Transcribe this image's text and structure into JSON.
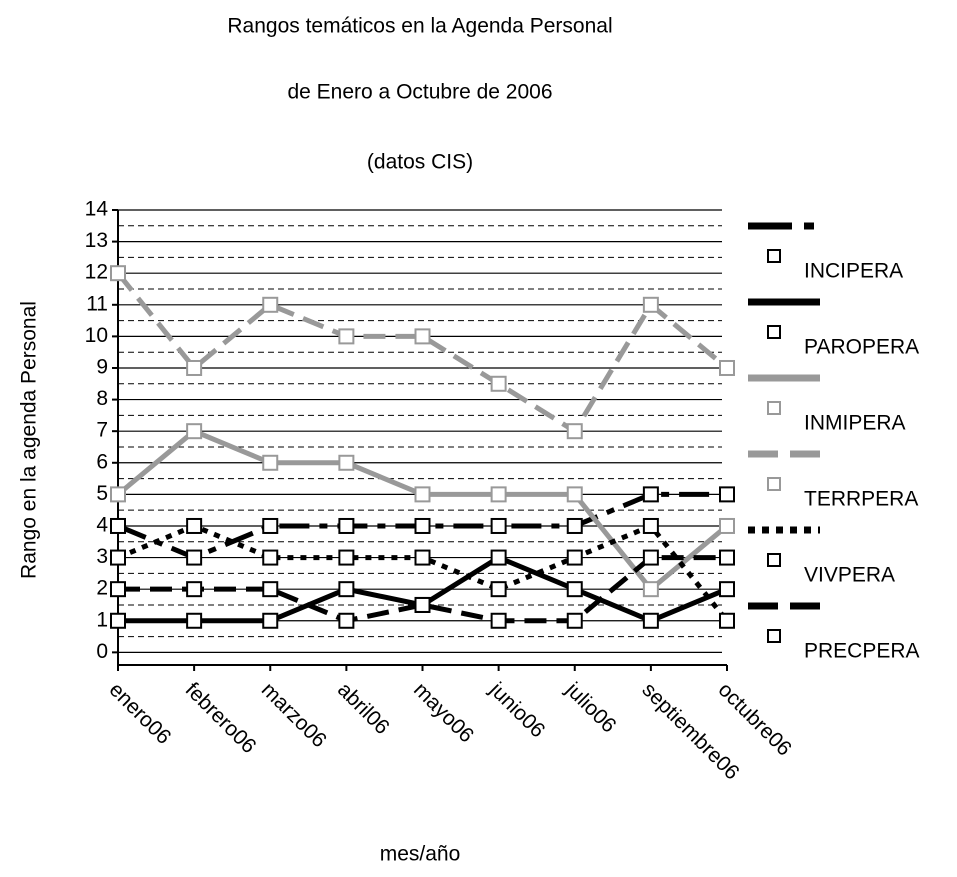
{
  "chart_data": {
    "type": "line",
    "title": "Rangos temáticos en la Agenda Personal",
    "subtitle": "de Enero a Octubre de 2006",
    "note": "(datos CIS)",
    "y_label": "Rango en la agenda Personal",
    "x_label": "mes/año",
    "categories": [
      "enero06",
      "febrero06",
      "marzo06",
      "abril06",
      "mayo06",
      "junio06",
      "julio06",
      "septiembre06",
      "octubre06"
    ],
    "ylim": [
      -0.4,
      14
    ],
    "yticks": [
      0,
      1,
      2,
      3,
      4,
      5,
      6,
      7,
      8,
      9,
      10,
      11,
      12,
      13,
      14
    ],
    "yminorticks": [
      0.5,
      1.5,
      2.5,
      3.5,
      4.5,
      5.5,
      6.5,
      7.5,
      8.5,
      9.5,
      10.5,
      11.5,
      12.5,
      13.5
    ],
    "grid": true,
    "legend": "right",
    "series": [
      {
        "name": "INCIPERA",
        "color": "#000000",
        "dash": "dash-dot",
        "values": [
          4,
          3,
          4,
          4,
          4,
          4,
          4,
          5,
          5
        ]
      },
      {
        "name": "PAROPERA",
        "color": "#000000",
        "dash": "solid",
        "values": [
          1,
          1,
          1,
          2,
          1.5,
          3,
          2,
          1,
          2
        ]
      },
      {
        "name": "INMIPERA",
        "color": "#999999",
        "dash": "solid",
        "values": [
          5,
          7,
          6,
          6,
          5,
          5,
          5,
          2,
          4
        ]
      },
      {
        "name": "TERRPERA",
        "color": "#999999",
        "dash": "dashed",
        "values": [
          12,
          9,
          11,
          10,
          10,
          8.5,
          7,
          11,
          9
        ]
      },
      {
        "name": "VIVPERA",
        "color": "#000000",
        "dash": "dotted",
        "values": [
          3,
          4,
          3,
          3,
          3,
          2,
          3,
          4,
          1
        ]
      },
      {
        "name": "PRECPERA",
        "color": "#000000",
        "dash": "dashed",
        "values": [
          2,
          2,
          2,
          1,
          1.5,
          1,
          1,
          3,
          3
        ]
      }
    ]
  }
}
